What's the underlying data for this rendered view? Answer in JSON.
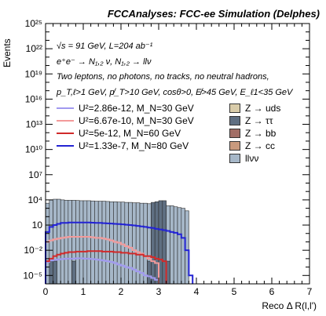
{
  "header": {
    "title": "FCCAnalyses: FCC-ee Simulation (Delphes)"
  },
  "annotations": [
    "√s = 91 GeV, L=204 ab⁻¹",
    "e⁺e⁻ → N₁,₂ ν, N₁,₂ → llν",
    "Two leptons, no photons, no tracks, no neutral hadrons,",
    "p_T,ℓ>1 GeV, p̸_T>10 GeV, cosθ>0, E̸>45 GeV, E_ℓ1<35 GeV"
  ],
  "colors": {
    "z_uds": "#d9ccaa",
    "z_tautau": "#5f6f82",
    "z_bb": "#a26e66",
    "z_cc": "#c99a7e",
    "llvv": "#a6b7c8",
    "sig1": "#a199ef",
    "sig2": "#f39a9a",
    "sig3": "#d02a2a",
    "sig4": "#2323d3"
  },
  "chart_data": {
    "type": "histogram",
    "title": "FCCAnalyses: FCC-ee Simulation (Delphes)",
    "xlabel": "Reco Δ R(l,l')",
    "ylabel": "Events",
    "xlim": [
      0,
      7
    ],
    "ylim": [
      1e-06,
      1e+25
    ],
    "ylog": true,
    "x_ticks": [
      0,
      1,
      2,
      3,
      4,
      5,
      6,
      7
    ],
    "y_ticks": [
      1e-05,
      0.01,
      10,
      10000.0,
      10000000.0,
      10000000000.0,
      10000000000000.0,
      1e+16,
      1e+19,
      1e+22,
      1e+25
    ],
    "y_tick_labels": [
      "10⁻⁵",
      "10⁻²",
      "10",
      "10⁴",
      "10⁷",
      "10¹⁰",
      "10¹³",
      "10¹⁶",
      "10¹⁹",
      "10²²",
      "10²⁵"
    ],
    "bin_width": 0.1,
    "legend_position": "top-right",
    "background_stacks": [
      {
        "name": "llνν",
        "color": "#a6b7c8",
        "bins": [
          [
            0.0,
            0.1,
            4000
          ],
          [
            0.1,
            0.2,
            10000
          ],
          [
            0.2,
            0.3,
            12000
          ],
          [
            0.3,
            0.4,
            12000
          ],
          [
            0.4,
            0.5,
            10000
          ],
          [
            0.5,
            0.6,
            9000
          ],
          [
            0.6,
            0.7,
            9000
          ],
          [
            0.7,
            0.8,
            9000
          ],
          [
            0.8,
            0.9,
            8500
          ],
          [
            0.9,
            1.0,
            8000
          ],
          [
            1.0,
            1.1,
            8000
          ],
          [
            1.1,
            1.2,
            8000
          ],
          [
            1.2,
            1.3,
            7500
          ],
          [
            1.3,
            1.4,
            7000
          ],
          [
            1.4,
            1.5,
            7000
          ],
          [
            1.5,
            1.6,
            7000
          ],
          [
            1.6,
            1.7,
            6500
          ],
          [
            1.7,
            1.8,
            6000
          ],
          [
            1.8,
            1.9,
            6000
          ],
          [
            1.9,
            2.0,
            5500
          ],
          [
            2.0,
            2.1,
            5500
          ],
          [
            2.1,
            2.2,
            5000
          ],
          [
            2.2,
            2.3,
            5000
          ],
          [
            2.3,
            2.4,
            4500
          ],
          [
            2.4,
            2.5,
            4500
          ],
          [
            2.5,
            2.6,
            4000
          ],
          [
            2.6,
            2.7,
            4000
          ],
          [
            2.7,
            2.8,
            3500
          ],
          [
            2.8,
            2.9,
            3500
          ],
          [
            2.9,
            3.0,
            3000
          ],
          [
            3.0,
            3.1,
            3000
          ],
          [
            3.1,
            3.2,
            2500
          ],
          [
            3.2,
            3.3,
            2000
          ],
          [
            3.3,
            3.4,
            2000
          ],
          [
            3.4,
            3.5,
            1500
          ],
          [
            3.5,
            3.6,
            1200
          ],
          [
            3.6,
            3.7,
            1000
          ],
          [
            3.7,
            3.8,
            500
          ]
        ]
      },
      {
        "name": "Z → ττ",
        "color": "#5f6f82",
        "bins": [
          [
            0.1,
            0.2,
            0.0005
          ],
          [
            0.2,
            0.3,
            0.0005
          ],
          [
            0.7,
            0.8,
            0.0005
          ],
          [
            2.7,
            2.8,
            0.0005
          ],
          [
            2.8,
            2.9,
            5000
          ],
          [
            2.9,
            3.0,
            6000
          ],
          [
            3.0,
            3.1,
            8000
          ],
          [
            3.1,
            3.2,
            8000
          ],
          [
            3.2,
            3.3,
            0.0005
          ]
        ]
      },
      {
        "name": "Z → uds",
        "color": "#d9ccaa",
        "bins": []
      },
      {
        "name": "Z → bb",
        "color": "#a26e66",
        "bins": []
      },
      {
        "name": "Z → cc",
        "color": "#c99a7e",
        "bins": []
      }
    ],
    "series": [
      {
        "name": "U²=2.86e-12, M_N=30 GeV",
        "color": "#a199ef",
        "bins": [
          [
            0.0,
            0.1,
            0.0004
          ],
          [
            0.1,
            0.2,
            0.0006
          ],
          [
            0.2,
            0.3,
            0.0007
          ],
          [
            0.3,
            0.4,
            0.0008
          ],
          [
            0.4,
            0.5,
            0.0009
          ],
          [
            0.5,
            0.6,
            0.001
          ],
          [
            0.6,
            0.7,
            0.001
          ],
          [
            0.7,
            0.8,
            0.001
          ],
          [
            0.8,
            0.9,
            0.0011
          ],
          [
            0.9,
            1.0,
            0.0011
          ],
          [
            1.0,
            1.1,
            0.001
          ],
          [
            1.1,
            1.2,
            0.001
          ],
          [
            1.2,
            1.3,
            0.0009
          ],
          [
            1.3,
            1.4,
            0.0008
          ],
          [
            1.4,
            1.5,
            0.0007
          ],
          [
            1.5,
            1.6,
            0.0006
          ],
          [
            1.6,
            1.7,
            0.0005
          ],
          [
            1.7,
            1.8,
            0.0004
          ],
          [
            1.8,
            1.9,
            0.0003
          ],
          [
            1.9,
            2.0,
            0.0002
          ],
          [
            2.0,
            2.1,
            0.00015
          ],
          [
            2.1,
            2.2,
            0.0001
          ],
          [
            2.2,
            2.3,
            8e-05
          ],
          [
            2.3,
            2.4,
            5e-05
          ],
          [
            2.4,
            2.5,
            3e-05
          ],
          [
            2.5,
            2.6,
            2e-05
          ],
          [
            2.6,
            2.7,
            1e-05
          ],
          [
            2.7,
            2.8,
            8e-06
          ],
          [
            2.8,
            2.9,
            5e-06
          ],
          [
            2.9,
            3.0,
            3e-06
          ]
        ]
      },
      {
        "name": "U²=6.67e-10, M_N=30 GeV",
        "color": "#f39a9a",
        "bins": [
          [
            0.0,
            0.1,
            0.1
          ],
          [
            0.1,
            0.2,
            0.15
          ],
          [
            0.2,
            0.3,
            0.2
          ],
          [
            0.3,
            0.4,
            0.25
          ],
          [
            0.4,
            0.5,
            0.3
          ],
          [
            0.5,
            0.6,
            0.35
          ],
          [
            0.6,
            0.7,
            0.4
          ],
          [
            0.7,
            0.8,
            0.4
          ],
          [
            0.8,
            0.9,
            0.4
          ],
          [
            0.9,
            1.0,
            0.4
          ],
          [
            1.0,
            1.1,
            0.4
          ],
          [
            1.1,
            1.2,
            0.4
          ],
          [
            1.2,
            1.3,
            0.35
          ],
          [
            1.3,
            1.4,
            0.3
          ],
          [
            1.4,
            1.5,
            0.3
          ],
          [
            1.5,
            1.6,
            0.25
          ],
          [
            1.6,
            1.7,
            0.2
          ],
          [
            1.7,
            1.8,
            0.15
          ],
          [
            1.8,
            1.9,
            0.1
          ],
          [
            1.9,
            2.0,
            0.08
          ],
          [
            2.0,
            2.1,
            0.05
          ],
          [
            2.1,
            2.2,
            0.03
          ],
          [
            2.2,
            2.3,
            0.02
          ],
          [
            2.3,
            2.4,
            0.01
          ],
          [
            2.4,
            2.5,
            0.006
          ],
          [
            2.5,
            2.6,
            0.004
          ],
          [
            2.6,
            2.7,
            0.002
          ],
          [
            2.7,
            2.8,
            0.001
          ],
          [
            2.8,
            2.9,
            0.0005
          ],
          [
            2.9,
            3.0,
            0.0003
          ]
        ]
      },
      {
        "name": "U²=5e-12, M_N=60 GeV",
        "color": "#d02a2a",
        "bins": [
          [
            0.0,
            0.1,
            0.0005
          ],
          [
            0.1,
            0.2,
            0.001
          ],
          [
            0.2,
            0.3,
            0.002
          ],
          [
            0.3,
            0.4,
            0.003
          ],
          [
            0.4,
            0.5,
            0.004
          ],
          [
            0.5,
            0.6,
            0.005
          ],
          [
            0.6,
            0.7,
            0.006
          ],
          [
            0.7,
            0.8,
            0.006
          ],
          [
            0.8,
            0.9,
            0.007
          ],
          [
            0.9,
            1.0,
            0.007
          ],
          [
            1.0,
            1.1,
            0.007
          ],
          [
            1.1,
            1.2,
            0.008
          ],
          [
            1.2,
            1.3,
            0.008
          ],
          [
            1.3,
            1.4,
            0.008
          ],
          [
            1.4,
            1.5,
            0.008
          ],
          [
            1.5,
            1.6,
            0.007
          ],
          [
            1.6,
            1.7,
            0.007
          ],
          [
            1.7,
            1.8,
            0.007
          ],
          [
            1.8,
            1.9,
            0.006
          ],
          [
            1.9,
            2.0,
            0.006
          ],
          [
            2.0,
            2.1,
            0.005
          ],
          [
            2.1,
            2.2,
            0.005
          ],
          [
            2.2,
            2.3,
            0.004
          ],
          [
            2.3,
            2.4,
            0.004
          ],
          [
            2.4,
            2.5,
            0.003
          ],
          [
            2.5,
            2.6,
            0.003
          ],
          [
            2.6,
            2.7,
            0.002
          ],
          [
            2.7,
            2.8,
            0.002
          ],
          [
            2.8,
            2.9,
            0.0015
          ],
          [
            2.9,
            3.0,
            0.001
          ],
          [
            3.0,
            3.1,
            0.0008
          ],
          [
            3.1,
            3.2,
            0.0005
          ]
        ]
      },
      {
        "name": "U²=1.33e-7, M_N=80 GeV",
        "color": "#2323d3",
        "bins": [
          [
            0.0,
            0.1,
            1.5
          ],
          [
            0.1,
            0.2,
            6
          ],
          [
            0.2,
            0.3,
            10
          ],
          [
            0.3,
            0.4,
            14
          ],
          [
            0.4,
            0.5,
            18
          ],
          [
            0.5,
            0.6,
            18
          ],
          [
            0.6,
            0.7,
            20
          ],
          [
            0.7,
            0.8,
            20
          ],
          [
            0.8,
            0.9,
            20
          ],
          [
            0.9,
            1.0,
            20
          ],
          [
            1.0,
            1.1,
            20
          ],
          [
            1.1,
            1.2,
            20
          ],
          [
            1.2,
            1.3,
            19
          ],
          [
            1.3,
            1.4,
            18
          ],
          [
            1.4,
            1.5,
            18
          ],
          [
            1.5,
            1.6,
            17
          ],
          [
            1.6,
            1.7,
            16
          ],
          [
            1.7,
            1.8,
            15
          ],
          [
            1.8,
            1.9,
            14
          ],
          [
            1.9,
            2.0,
            13
          ],
          [
            2.0,
            2.1,
            12
          ],
          [
            2.1,
            2.2,
            11
          ],
          [
            2.2,
            2.3,
            10
          ],
          [
            2.3,
            2.4,
            9
          ],
          [
            2.4,
            2.5,
            8
          ],
          [
            2.5,
            2.6,
            7
          ],
          [
            2.6,
            2.7,
            6
          ],
          [
            2.7,
            2.8,
            5
          ],
          [
            2.8,
            2.9,
            4.5
          ],
          [
            2.9,
            3.0,
            3.5
          ],
          [
            3.0,
            3.1,
            3
          ],
          [
            3.1,
            3.2,
            2.5
          ],
          [
            3.2,
            3.3,
            2
          ],
          [
            3.3,
            3.4,
            1.5
          ],
          [
            3.4,
            3.5,
            1.2
          ],
          [
            3.5,
            3.6,
            0.8
          ],
          [
            3.6,
            3.7,
            0.3
          ],
          [
            3.7,
            3.8,
            0.01
          ],
          [
            3.8,
            3.9,
            1e-05
          ]
        ]
      }
    ]
  }
}
